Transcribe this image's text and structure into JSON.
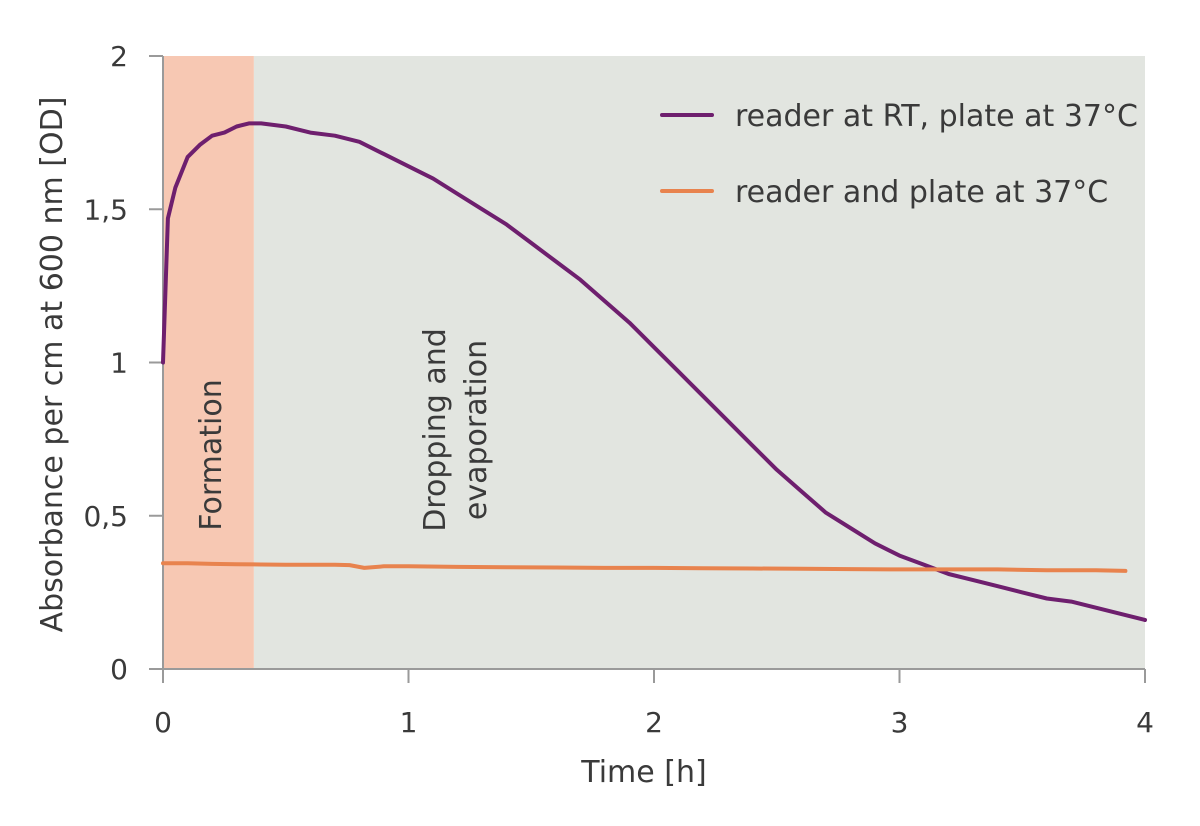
{
  "chart_data": {
    "type": "line",
    "xlabel": "Time [h]",
    "ylabel": "Absorbance per cm at 600 nm [OD]",
    "xlim": [
      0,
      4
    ],
    "ylim": [
      0,
      2
    ],
    "x_ticks": [
      0,
      1,
      2,
      3,
      4
    ],
    "x_tick_labels": [
      "0",
      "1",
      "2",
      "3",
      "4"
    ],
    "y_ticks": [
      0,
      0.5,
      1,
      1.5,
      2
    ],
    "y_tick_labels": [
      "0",
      "0,5",
      "1",
      "1,5",
      "2"
    ],
    "grid": false,
    "legend_position": "top-right",
    "regions": [
      {
        "label": "Formation",
        "x_start": 0,
        "x_end": 0.37,
        "color": "#f7c8b3"
      },
      {
        "label_lines": [
          "Dropping and",
          "evaporation"
        ],
        "x_start": 0.37,
        "x_end": 4,
        "color": "#e2e5e0"
      }
    ],
    "series": [
      {
        "name": "reader at RT, plate at 37°C",
        "color": "#6e1f6e",
        "x": [
          0,
          0.02,
          0.05,
          0.1,
          0.15,
          0.2,
          0.25,
          0.3,
          0.35,
          0.4,
          0.5,
          0.6,
          0.7,
          0.8,
          0.9,
          1.0,
          1.1,
          1.2,
          1.3,
          1.4,
          1.5,
          1.6,
          1.7,
          1.8,
          1.9,
          2.0,
          2.1,
          2.2,
          2.3,
          2.4,
          2.5,
          2.6,
          2.7,
          2.8,
          2.9,
          3.0,
          3.1,
          3.2,
          3.3,
          3.4,
          3.5,
          3.6,
          3.7,
          3.8,
          3.9,
          4.0
        ],
        "y": [
          1.0,
          1.47,
          1.57,
          1.67,
          1.71,
          1.74,
          1.75,
          1.77,
          1.78,
          1.78,
          1.77,
          1.75,
          1.74,
          1.72,
          1.68,
          1.64,
          1.6,
          1.55,
          1.5,
          1.45,
          1.39,
          1.33,
          1.27,
          1.2,
          1.13,
          1.05,
          0.97,
          0.89,
          0.81,
          0.73,
          0.65,
          0.58,
          0.51,
          0.46,
          0.41,
          0.37,
          0.34,
          0.31,
          0.29,
          0.27,
          0.25,
          0.23,
          0.22,
          0.2,
          0.18,
          0.16
        ]
      },
      {
        "name": "reader and plate at 37°C",
        "color": "#e8834e",
        "x": [
          0,
          0.1,
          0.2,
          0.3,
          0.4,
          0.5,
          0.6,
          0.7,
          0.76,
          0.82,
          0.9,
          1.0,
          1.2,
          1.4,
          1.6,
          1.8,
          2.0,
          2.2,
          2.4,
          2.6,
          2.8,
          3.0,
          3.2,
          3.4,
          3.6,
          3.8,
          3.92
        ],
        "y": [
          0.345,
          0.345,
          0.343,
          0.342,
          0.341,
          0.34,
          0.34,
          0.34,
          0.339,
          0.33,
          0.335,
          0.335,
          0.333,
          0.332,
          0.331,
          0.33,
          0.33,
          0.329,
          0.328,
          0.327,
          0.326,
          0.325,
          0.325,
          0.325,
          0.322,
          0.322,
          0.32
        ]
      }
    ]
  }
}
